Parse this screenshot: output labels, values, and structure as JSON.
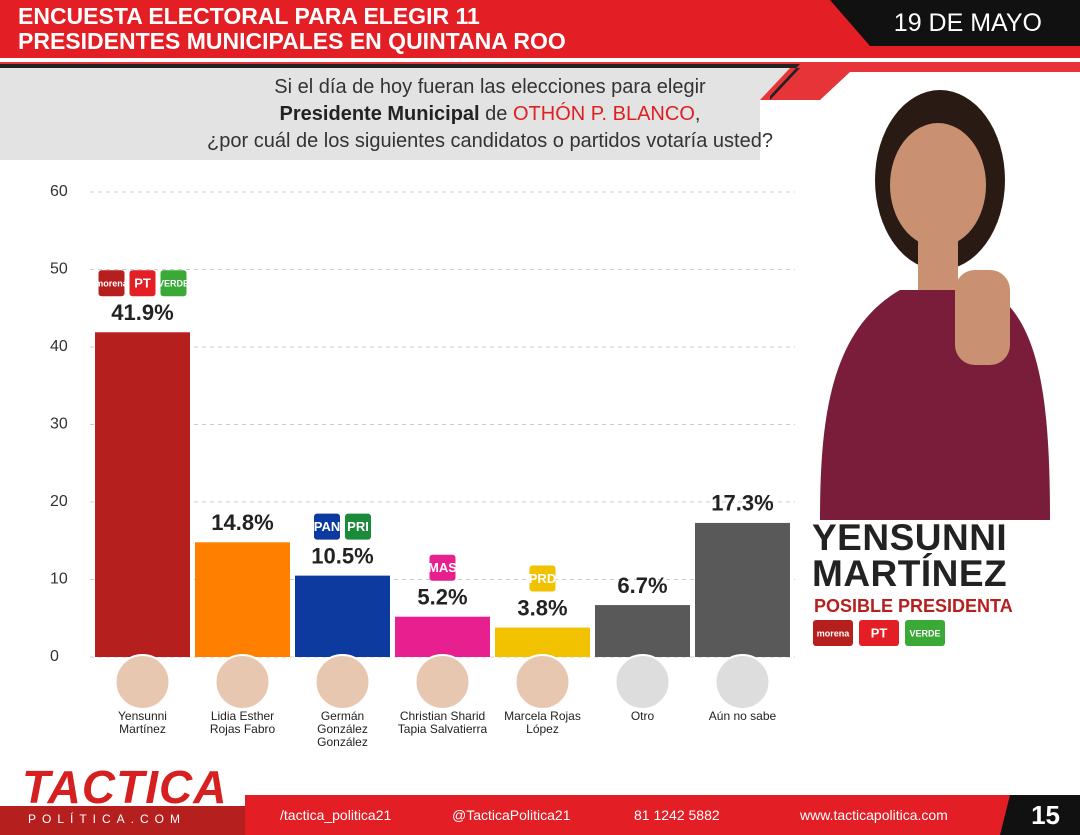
{
  "header": {
    "title_lines": [
      "ENCUESTA ELECTORAL PARA ELEGIR 11",
      "PRESIDENTES MUNICIPALES EN QUINTANA ROO"
    ],
    "date": "19 DE MAYO"
  },
  "question": {
    "line1": "Si el día de hoy fueran las elecciones para elegir",
    "line2_bold": "Presidente Municipal",
    "line2_mid": "de",
    "line2_red": "OTHÓN P. BLANCO",
    "line2_end": ",",
    "line3": "¿por cuál de los siguientes candidatos o partidos votaría usted?"
  },
  "chart_data": {
    "type": "bar",
    "categories": [
      "Yensunni Martínez",
      "Lidia Esther Rojas Fabro",
      "Germán González González",
      "Christian Sharid Tapia Salvatierra",
      "Marcela Rojas López",
      "Otro",
      "Aún no sabe"
    ],
    "values": [
      41.9,
      14.8,
      10.5,
      5.2,
      3.8,
      6.7,
      17.3
    ],
    "value_labels": [
      "41.9%",
      "14.8%",
      "10.5%",
      "5.2%",
      "3.8%",
      "6.7%",
      "17.3%"
    ],
    "colors": [
      "#b5201f",
      "#ff8000",
      "#0d3a9e",
      "#e8208f",
      "#f2c200",
      "#595959",
      "#595959"
    ],
    "ylim": [
      0,
      60
    ],
    "yticks": [
      0,
      10,
      20,
      30,
      40,
      50,
      60
    ],
    "grid": true
  },
  "party_logos": [
    [
      "morena",
      "PT",
      "VERDE"
    ],
    [],
    [
      "PAN",
      "PRI"
    ],
    [
      "MAS"
    ],
    [
      "PRD"
    ],
    [],
    []
  ],
  "candidate": {
    "name_lines": [
      "YENSUNNI",
      "MARTÍNEZ"
    ],
    "subtitle": "POSIBLE PRESIDENTA",
    "parties": [
      "morena",
      "PT",
      "VERDE"
    ]
  },
  "footer": {
    "logo": "TACTICA",
    "logo_sub": "POLÍTICA.COM",
    "facebook": "/tactica_politica21",
    "instagram": "@TacticaPolitica21",
    "phone": "81 1242 5882",
    "web": "www.tacticapolitica.com",
    "page": "15"
  }
}
